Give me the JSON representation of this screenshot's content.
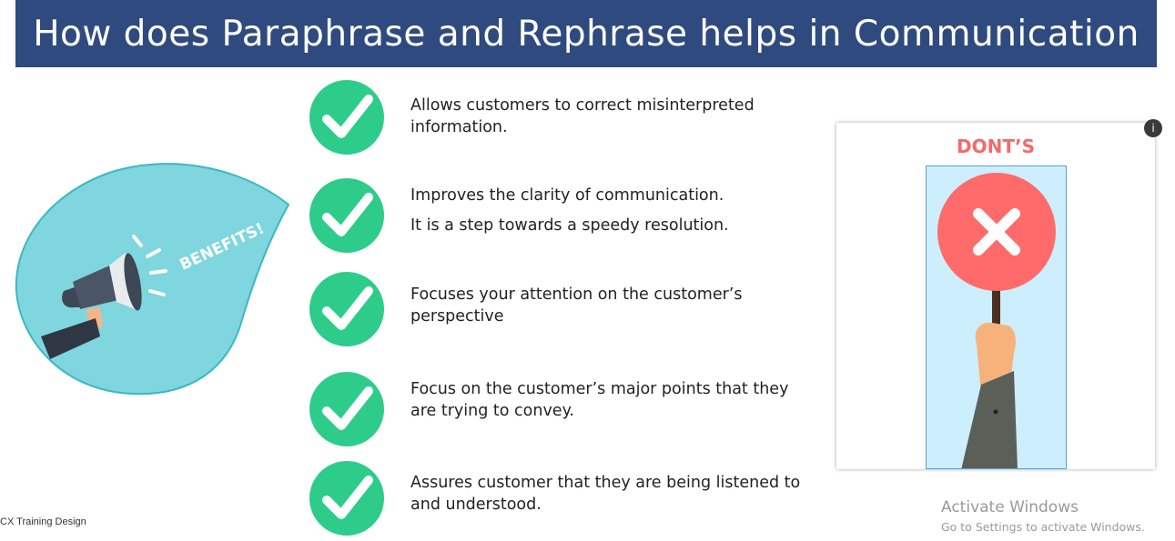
{
  "slide": {
    "title": "How does Paraphrase and Rephrase helps in Communication"
  },
  "benefits_graphic": {
    "label": "BENEFITS!",
    "icon": "megaphone-icon"
  },
  "items": [
    {
      "lines": [
        "Allows customers to correct misinterpreted",
        "information."
      ],
      "icon": "check-icon"
    },
    {
      "lines": [
        "Improves the clarity of communication."
      ],
      "icon": "check-icon"
    },
    {
      "lines": [
        "It is a step towards a speedy resolution."
      ],
      "icon": "none"
    },
    {
      "lines": [
        "Focuses your attention on the customer’s",
        "perspective"
      ],
      "icon": "check-icon"
    },
    {
      "lines": [
        "Focus on the customer’s major points that they",
        "are trying to convey."
      ],
      "icon": "check-icon"
    },
    {
      "lines": [
        "Assures customer that they are being listened to",
        "and understood."
      ],
      "icon": "check-icon"
    }
  ],
  "donts_card": {
    "title": "DONT’S",
    "sign_icon": "x-sign-icon",
    "info_badge": "i"
  },
  "footer": {
    "label": "CX Training Design"
  },
  "watermark": {
    "title": "Activate Windows",
    "subtitle": "Go to Settings to activate Windows."
  },
  "colors": {
    "banner": "#2f4a7e",
    "check_green": "#2ecc8b",
    "teal_bubble": "#7fd6de",
    "donts_red": "#f26b6b",
    "sign_red": "#ff6b6b",
    "panel_blue": "#cdeefc"
  }
}
